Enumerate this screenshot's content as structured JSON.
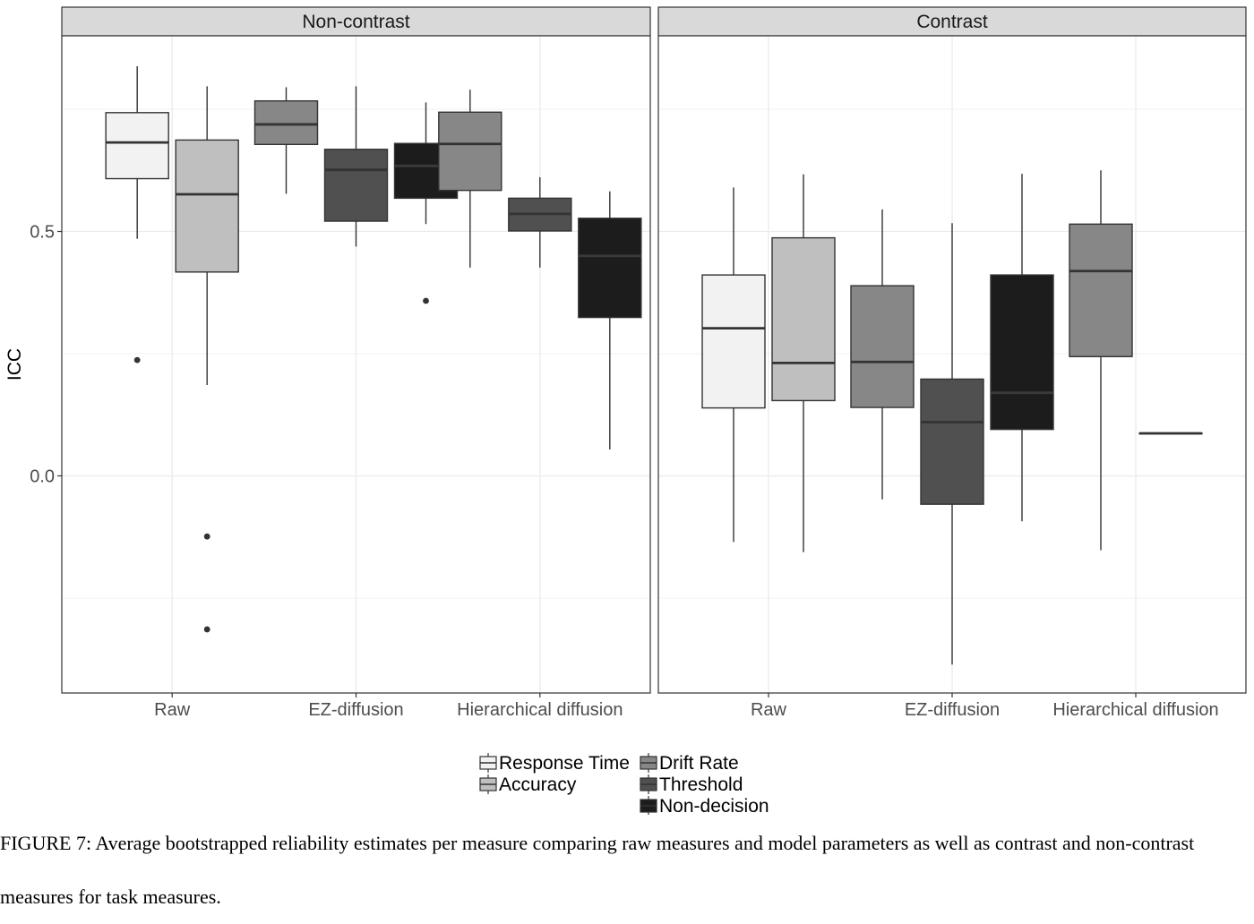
{
  "chart_data": {
    "type": "boxplot",
    "y_label": "ICC",
    "y_range": [
      -0.44,
      0.85
    ],
    "y_ticks": [
      0.5,
      0.0
    ],
    "y_tick_labels": [
      "0.5",
      "0.0"
    ],
    "y_minor_gridlines": [
      -0.25,
      0.25,
      0.75
    ],
    "grid": true,
    "x_categories": [
      "Raw",
      "EZ-diffusion",
      "Hierarchical diffusion"
    ],
    "facets": [
      {
        "title": "Non-contrast",
        "groups": [
          {
            "category": "Raw",
            "boxes": [
              {
                "measure": "Response Time",
                "min": 0.485,
                "q1": 0.608,
                "median": 0.682,
                "q3": 0.743,
                "max": 0.838,
                "outliers": [
                  0.237
                ]
              },
              {
                "measure": "Accuracy",
                "min": 0.186,
                "q1": 0.417,
                "median": 0.576,
                "q3": 0.687,
                "max": 0.797,
                "outliers": [
                  -0.124,
                  -0.314
                ]
              }
            ]
          },
          {
            "category": "EZ-diffusion",
            "boxes": [
              {
                "measure": "Drift Rate",
                "min": 0.577,
                "q1": 0.678,
                "median": 0.719,
                "q3": 0.767,
                "max": 0.795,
                "outliers": []
              },
              {
                "measure": "Threshold",
                "min": 0.469,
                "q1": 0.521,
                "median": 0.626,
                "q3": 0.668,
                "max": 0.797,
                "outliers": []
              },
              {
                "measure": "Non-decision",
                "min": 0.515,
                "q1": 0.568,
                "median": 0.634,
                "q3": 0.68,
                "max": 0.764,
                "outliers": [
                  0.358
                ]
              }
            ]
          },
          {
            "category": "Hierarchical diffusion",
            "boxes": [
              {
                "measure": "Drift Rate",
                "min": 0.426,
                "q1": 0.584,
                "median": 0.679,
                "q3": 0.744,
                "max": 0.79,
                "outliers": []
              },
              {
                "measure": "Threshold",
                "min": 0.426,
                "q1": 0.501,
                "median": 0.536,
                "q3": 0.568,
                "max": 0.611,
                "outliers": []
              },
              {
                "measure": "Non-decision",
                "min": 0.054,
                "q1": 0.324,
                "median": 0.45,
                "q3": 0.527,
                "max": 0.582,
                "outliers": []
              }
            ]
          }
        ]
      },
      {
        "title": "Contrast",
        "groups": [
          {
            "category": "Raw",
            "boxes": [
              {
                "measure": "Response Time",
                "min": -0.135,
                "q1": 0.139,
                "median": 0.302,
                "q3": 0.411,
                "max": 0.59,
                "outliers": []
              },
              {
                "measure": "Accuracy",
                "min": -0.156,
                "q1": 0.154,
                "median": 0.231,
                "q3": 0.487,
                "max": 0.617,
                "outliers": []
              }
            ]
          },
          {
            "category": "EZ-diffusion",
            "boxes": [
              {
                "measure": "Drift Rate",
                "min": -0.048,
                "q1": 0.14,
                "median": 0.233,
                "q3": 0.389,
                "max": 0.545,
                "outliers": []
              },
              {
                "measure": "Threshold",
                "min": -0.386,
                "q1": -0.058,
                "median": 0.11,
                "q3": 0.198,
                "max": 0.517,
                "outliers": []
              },
              {
                "measure": "Non-decision",
                "min": -0.093,
                "q1": 0.095,
                "median": 0.17,
                "q3": 0.411,
                "max": 0.618,
                "outliers": []
              }
            ]
          },
          {
            "category": "Hierarchical diffusion",
            "boxes": [
              {
                "measure": "Drift Rate",
                "min": -0.152,
                "q1": 0.244,
                "median": 0.419,
                "q3": 0.515,
                "max": 0.625,
                "outliers": []
              },
              {
                "measure": "Threshold",
                "min": 0.087,
                "q1": 0.087,
                "median": 0.087,
                "q3": 0.087,
                "max": 0.087,
                "outliers": []
              }
            ]
          }
        ]
      }
    ],
    "legend": {
      "position": "bottom",
      "columns": [
        [
          {
            "label": "Response Time",
            "color": "#f2f2f2"
          },
          {
            "label": "Accuracy",
            "color": "#bfbfbf"
          }
        ],
        [
          {
            "label": "Drift Rate",
            "color": "#878787"
          },
          {
            "label": "Threshold",
            "color": "#505050"
          },
          {
            "label": "Non-decision",
            "color": "#1c1c1c"
          }
        ]
      ]
    },
    "colors": {
      "Response Time": "#f2f2f2",
      "Accuracy": "#bfbfbf",
      "Drift Rate": "#878787",
      "Threshold": "#505050",
      "Non-decision": "#1c1c1c",
      "strip_background": "#d9d9d9",
      "grid": "#ebebeb",
      "panel_border": "#333333"
    }
  },
  "caption": "FIGURE 7: Average bootstrapped reliability estimates per measure comparing raw measures and model parameters as well as contrast and non-contrast measures for task measures."
}
